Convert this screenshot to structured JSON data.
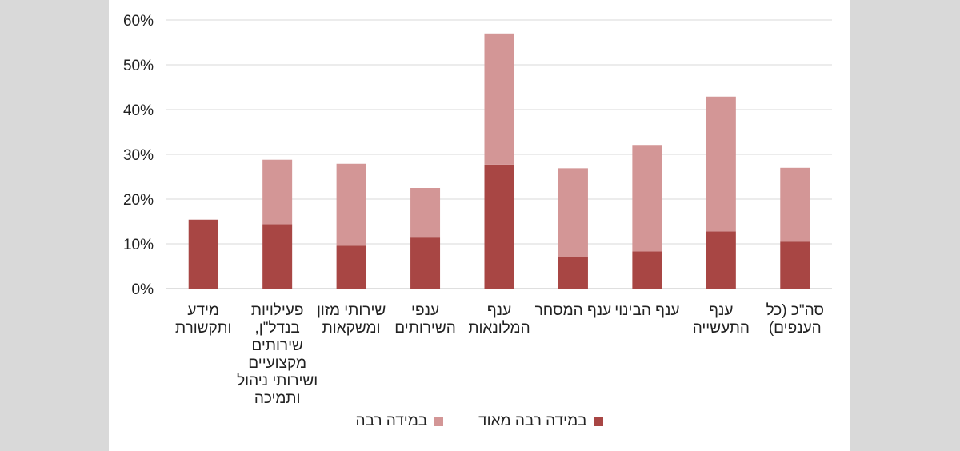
{
  "chart_data": {
    "type": "bar",
    "stacked": true,
    "categories": [
      "סה\"כ (כל הענפים)",
      "ענף התעשייה",
      "ענף הבינוי",
      "ענף המסחר",
      "ענף המלונאות",
      "ענפי השירותים",
      "שירותי מזון ומשקאות",
      "פעילויות בנדל\"ן, שירותים מקצועיים ושירותי ניהול ותמיכה",
      "מידע ותקשורת"
    ],
    "series": [
      {
        "name": "במידה רבה מאוד",
        "color": "#a84644",
        "values": [
          10.5,
          12.8,
          8.3,
          7.0,
          27.7,
          11.4,
          9.6,
          14.4,
          15.4
        ]
      },
      {
        "name": "במידה רבה",
        "color": "#d39696",
        "values": [
          16.5,
          30.1,
          23.8,
          19.9,
          29.3,
          11.1,
          18.3,
          14.4,
          0
        ]
      }
    ],
    "ylim": [
      0,
      60
    ],
    "yticks": [
      "0%",
      "10%",
      "20%",
      "30%",
      "40%",
      "50%",
      "60%"
    ],
    "grid": true,
    "legend_position": "bottom"
  }
}
